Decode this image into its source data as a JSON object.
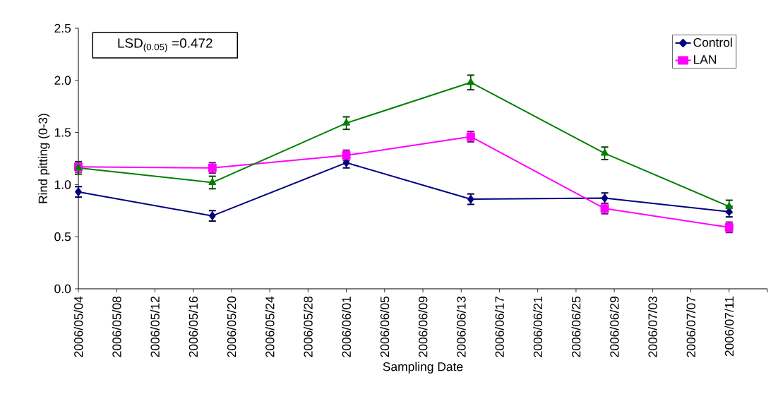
{
  "chart_data": {
    "type": "line",
    "xlabel": "Sampling Date",
    "ylabel": "Rind pitting (0-3)",
    "annotations": [
      "LSD$_{(0.05)}$ =0.472"
    ],
    "x": [
      "2006-05-04",
      "2006-05-18",
      "2006-06-01",
      "2006-06-14",
      "2006-06-28",
      "2006-07-11"
    ],
    "series": [
      {
        "name": "Control",
        "color": "#000080",
        "marker": "diamond",
        "values": [
          0.93,
          0.7,
          1.21,
          0.86,
          0.87,
          0.74
        ],
        "errors": [
          0.05,
          0.05,
          0.05,
          0.05,
          0.05,
          0.05
        ]
      },
      {
        "name": "LAN",
        "color": "#ff00ff",
        "marker": "square",
        "values": [
          1.17,
          1.16,
          1.28,
          1.46,
          0.77,
          0.59
        ],
        "errors": [
          0.05,
          0.05,
          0.05,
          0.05,
          0.05,
          0.05
        ]
      },
      {
        "color": "#008000",
        "marker": "triangle",
        "values": [
          1.16,
          1.02,
          1.59,
          1.98,
          1.3,
          0.79
        ],
        "errors": [
          0.06,
          0.06,
          0.06,
          0.07,
          0.06,
          0.06
        ]
      }
    ],
    "xlim": [
      "2006-05-04",
      "2006-07-15"
    ],
    "xticks": [
      {
        "value": "2006-05-04",
        "label": "2006/05/04"
      },
      {
        "value": "2006-05-08",
        "label": "2006/05/08"
      },
      {
        "value": "2006-05-12",
        "label": "2006/05/12"
      },
      {
        "value": "2006-05-16",
        "label": "2006/05/16"
      },
      {
        "value": "2006-05-20",
        "label": "2006/05/20"
      },
      {
        "value": "2006-05-24",
        "label": "2006/05/24"
      },
      {
        "value": "2006-05-28",
        "label": "2006/05/28"
      },
      {
        "value": "2006-06-01",
        "label": "2006/06/01"
      },
      {
        "value": "2006-06-05",
        "label": "2006/06/05"
      },
      {
        "value": "2006-06-09",
        "label": "2006/06/09"
      },
      {
        "value": "2006-06-13",
        "label": "2006/06/13"
      },
      {
        "value": "2006-06-17",
        "label": "2006/06/17"
      },
      {
        "value": "2006-06-21",
        "label": "2006/06/21"
      },
      {
        "value": "2006-06-25",
        "label": "2006/06/25"
      },
      {
        "value": "2006-06-29",
        "label": "2006/06/29"
      },
      {
        "value": "2006-07-03",
        "label": "2006/07/03"
      },
      {
        "value": "2006-07-07",
        "label": "2006/07/07"
      },
      {
        "value": "2006-07-11",
        "label": "2006/07/11"
      },
      {
        "value": "2006-07-15",
        "label": null
      }
    ],
    "ylim": [
      0,
      2.5
    ],
    "yticks": [
      {
        "value": 0,
        "label": "0.0"
      },
      {
        "value": 0.5,
        "label": "0.5"
      },
      {
        "value": 1,
        "label": "1.0"
      },
      {
        "value": 1.5,
        "label": "1.5"
      },
      {
        "value": 2,
        "label": "2.0"
      },
      {
        "value": 2.5,
        "label": "2.5"
      }
    ],
    "legend": "top right",
    "grid": false,
    "line_style": "solid"
  }
}
